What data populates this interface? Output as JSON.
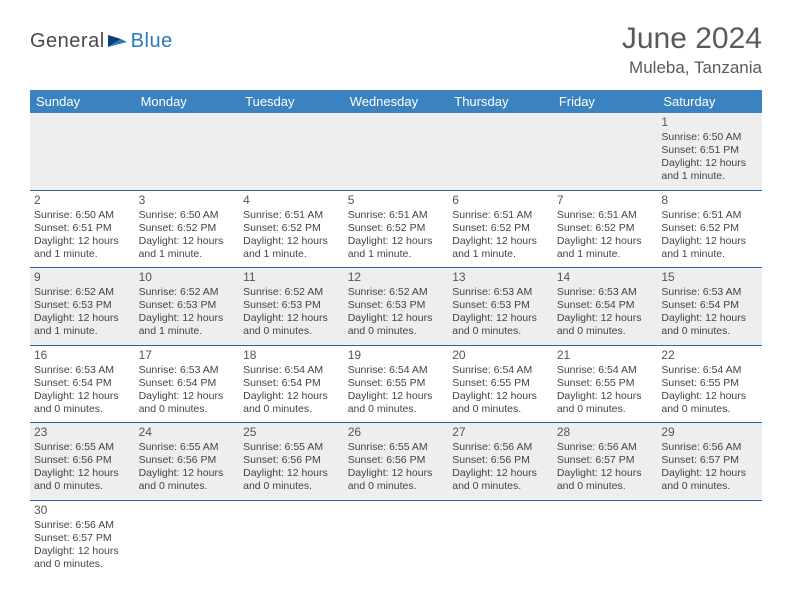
{
  "logo": {
    "general": "General",
    "blue": "Blue"
  },
  "title": "June 2024",
  "location": "Muleba, Tanzania",
  "colors": {
    "header_bg": "#3b83c0",
    "header_fg": "#ffffff",
    "row_divider": "#2a66a3",
    "alt_row_bg": "#eeeeee",
    "text": "#444444",
    "logo_gray": "#4a4a4a",
    "logo_blue": "#2a7ab8"
  },
  "day_headers": [
    "Sunday",
    "Monday",
    "Tuesday",
    "Wednesday",
    "Thursday",
    "Friday",
    "Saturday"
  ],
  "weeks": [
    [
      null,
      null,
      null,
      null,
      null,
      null,
      {
        "n": "1",
        "sr": "Sunrise: 6:50 AM",
        "ss": "Sunset: 6:51 PM",
        "d1": "Daylight: 12 hours",
        "d2": "and 1 minute."
      }
    ],
    [
      {
        "n": "2",
        "sr": "Sunrise: 6:50 AM",
        "ss": "Sunset: 6:51 PM",
        "d1": "Daylight: 12 hours",
        "d2": "and 1 minute."
      },
      {
        "n": "3",
        "sr": "Sunrise: 6:50 AM",
        "ss": "Sunset: 6:52 PM",
        "d1": "Daylight: 12 hours",
        "d2": "and 1 minute."
      },
      {
        "n": "4",
        "sr": "Sunrise: 6:51 AM",
        "ss": "Sunset: 6:52 PM",
        "d1": "Daylight: 12 hours",
        "d2": "and 1 minute."
      },
      {
        "n": "5",
        "sr": "Sunrise: 6:51 AM",
        "ss": "Sunset: 6:52 PM",
        "d1": "Daylight: 12 hours",
        "d2": "and 1 minute."
      },
      {
        "n": "6",
        "sr": "Sunrise: 6:51 AM",
        "ss": "Sunset: 6:52 PM",
        "d1": "Daylight: 12 hours",
        "d2": "and 1 minute."
      },
      {
        "n": "7",
        "sr": "Sunrise: 6:51 AM",
        "ss": "Sunset: 6:52 PM",
        "d1": "Daylight: 12 hours",
        "d2": "and 1 minute."
      },
      {
        "n": "8",
        "sr": "Sunrise: 6:51 AM",
        "ss": "Sunset: 6:52 PM",
        "d1": "Daylight: 12 hours",
        "d2": "and 1 minute."
      }
    ],
    [
      {
        "n": "9",
        "sr": "Sunrise: 6:52 AM",
        "ss": "Sunset: 6:53 PM",
        "d1": "Daylight: 12 hours",
        "d2": "and 1 minute."
      },
      {
        "n": "10",
        "sr": "Sunrise: 6:52 AM",
        "ss": "Sunset: 6:53 PM",
        "d1": "Daylight: 12 hours",
        "d2": "and 1 minute."
      },
      {
        "n": "11",
        "sr": "Sunrise: 6:52 AM",
        "ss": "Sunset: 6:53 PM",
        "d1": "Daylight: 12 hours",
        "d2": "and 0 minutes."
      },
      {
        "n": "12",
        "sr": "Sunrise: 6:52 AM",
        "ss": "Sunset: 6:53 PM",
        "d1": "Daylight: 12 hours",
        "d2": "and 0 minutes."
      },
      {
        "n": "13",
        "sr": "Sunrise: 6:53 AM",
        "ss": "Sunset: 6:53 PM",
        "d1": "Daylight: 12 hours",
        "d2": "and 0 minutes."
      },
      {
        "n": "14",
        "sr": "Sunrise: 6:53 AM",
        "ss": "Sunset: 6:54 PM",
        "d1": "Daylight: 12 hours",
        "d2": "and 0 minutes."
      },
      {
        "n": "15",
        "sr": "Sunrise: 6:53 AM",
        "ss": "Sunset: 6:54 PM",
        "d1": "Daylight: 12 hours",
        "d2": "and 0 minutes."
      }
    ],
    [
      {
        "n": "16",
        "sr": "Sunrise: 6:53 AM",
        "ss": "Sunset: 6:54 PM",
        "d1": "Daylight: 12 hours",
        "d2": "and 0 minutes."
      },
      {
        "n": "17",
        "sr": "Sunrise: 6:53 AM",
        "ss": "Sunset: 6:54 PM",
        "d1": "Daylight: 12 hours",
        "d2": "and 0 minutes."
      },
      {
        "n": "18",
        "sr": "Sunrise: 6:54 AM",
        "ss": "Sunset: 6:54 PM",
        "d1": "Daylight: 12 hours",
        "d2": "and 0 minutes."
      },
      {
        "n": "19",
        "sr": "Sunrise: 6:54 AM",
        "ss": "Sunset: 6:55 PM",
        "d1": "Daylight: 12 hours",
        "d2": "and 0 minutes."
      },
      {
        "n": "20",
        "sr": "Sunrise: 6:54 AM",
        "ss": "Sunset: 6:55 PM",
        "d1": "Daylight: 12 hours",
        "d2": "and 0 minutes."
      },
      {
        "n": "21",
        "sr": "Sunrise: 6:54 AM",
        "ss": "Sunset: 6:55 PM",
        "d1": "Daylight: 12 hours",
        "d2": "and 0 minutes."
      },
      {
        "n": "22",
        "sr": "Sunrise: 6:54 AM",
        "ss": "Sunset: 6:55 PM",
        "d1": "Daylight: 12 hours",
        "d2": "and 0 minutes."
      }
    ],
    [
      {
        "n": "23",
        "sr": "Sunrise: 6:55 AM",
        "ss": "Sunset: 6:56 PM",
        "d1": "Daylight: 12 hours",
        "d2": "and 0 minutes."
      },
      {
        "n": "24",
        "sr": "Sunrise: 6:55 AM",
        "ss": "Sunset: 6:56 PM",
        "d1": "Daylight: 12 hours",
        "d2": "and 0 minutes."
      },
      {
        "n": "25",
        "sr": "Sunrise: 6:55 AM",
        "ss": "Sunset: 6:56 PM",
        "d1": "Daylight: 12 hours",
        "d2": "and 0 minutes."
      },
      {
        "n": "26",
        "sr": "Sunrise: 6:55 AM",
        "ss": "Sunset: 6:56 PM",
        "d1": "Daylight: 12 hours",
        "d2": "and 0 minutes."
      },
      {
        "n": "27",
        "sr": "Sunrise: 6:56 AM",
        "ss": "Sunset: 6:56 PM",
        "d1": "Daylight: 12 hours",
        "d2": "and 0 minutes."
      },
      {
        "n": "28",
        "sr": "Sunrise: 6:56 AM",
        "ss": "Sunset: 6:57 PM",
        "d1": "Daylight: 12 hours",
        "d2": "and 0 minutes."
      },
      {
        "n": "29",
        "sr": "Sunrise: 6:56 AM",
        "ss": "Sunset: 6:57 PM",
        "d1": "Daylight: 12 hours",
        "d2": "and 0 minutes."
      }
    ],
    [
      {
        "n": "30",
        "sr": "Sunrise: 6:56 AM",
        "ss": "Sunset: 6:57 PM",
        "d1": "Daylight: 12 hours",
        "d2": "and 0 minutes."
      },
      null,
      null,
      null,
      null,
      null,
      null
    ]
  ]
}
